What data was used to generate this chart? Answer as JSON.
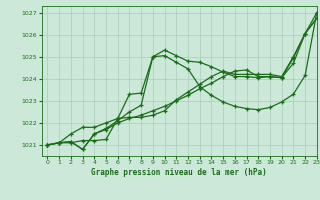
{
  "background_color": "#cce8d8",
  "plot_bg_color": "#cce8d8",
  "grid_color": "#aaccbb",
  "line_color": "#1a6e1a",
  "title": "Graphe pression niveau de la mer (hPa)",
  "xlim": [
    -0.5,
    23
  ],
  "ylim": [
    1020.5,
    1027.3
  ],
  "yticks": [
    1021,
    1022,
    1023,
    1024,
    1025,
    1026,
    1027
  ],
  "xticks": [
    0,
    1,
    2,
    3,
    4,
    5,
    6,
    7,
    8,
    9,
    10,
    11,
    12,
    13,
    14,
    15,
    16,
    17,
    18,
    19,
    20,
    21,
    22,
    23
  ],
  "series": [
    [
      1021.0,
      1021.1,
      1021.15,
      1020.8,
      1021.5,
      1021.7,
      1022.0,
      1022.2,
      1022.35,
      1022.55,
      1022.75,
      1023.0,
      1023.25,
      1023.55,
      1023.8,
      1024.1,
      1024.35,
      1024.4,
      1024.1,
      1024.1,
      1024.05,
      1024.7,
      1026.05,
      1026.75
    ],
    [
      1021.0,
      1021.1,
      1021.15,
      1020.8,
      1021.5,
      1021.75,
      1022.1,
      1022.5,
      1022.8,
      1025.0,
      1025.3,
      1025.05,
      1024.8,
      1024.75,
      1024.55,
      1024.3,
      1024.1,
      1024.1,
      1024.05,
      1024.1,
      1024.05,
      1024.95,
      1026.05,
      1026.75
    ],
    [
      1021.0,
      1021.1,
      1021.1,
      1021.2,
      1021.2,
      1021.25,
      1022.2,
      1023.3,
      1023.35,
      1025.0,
      1025.05,
      1024.75,
      1024.45,
      1023.65,
      1023.25,
      1022.95,
      1022.75,
      1022.65,
      1022.6,
      1022.7,
      1022.95,
      1023.3,
      1024.15,
      1027.0
    ],
    [
      1021.0,
      1021.1,
      1021.5,
      1021.8,
      1021.8,
      1022.0,
      1022.2,
      1022.25,
      1022.25,
      1022.35,
      1022.55,
      1023.05,
      1023.4,
      1023.75,
      1024.1,
      1024.35,
      1024.2,
      1024.2,
      1024.2,
      1024.2,
      1024.1,
      1025.0,
      1026.05,
      1027.0
    ]
  ]
}
